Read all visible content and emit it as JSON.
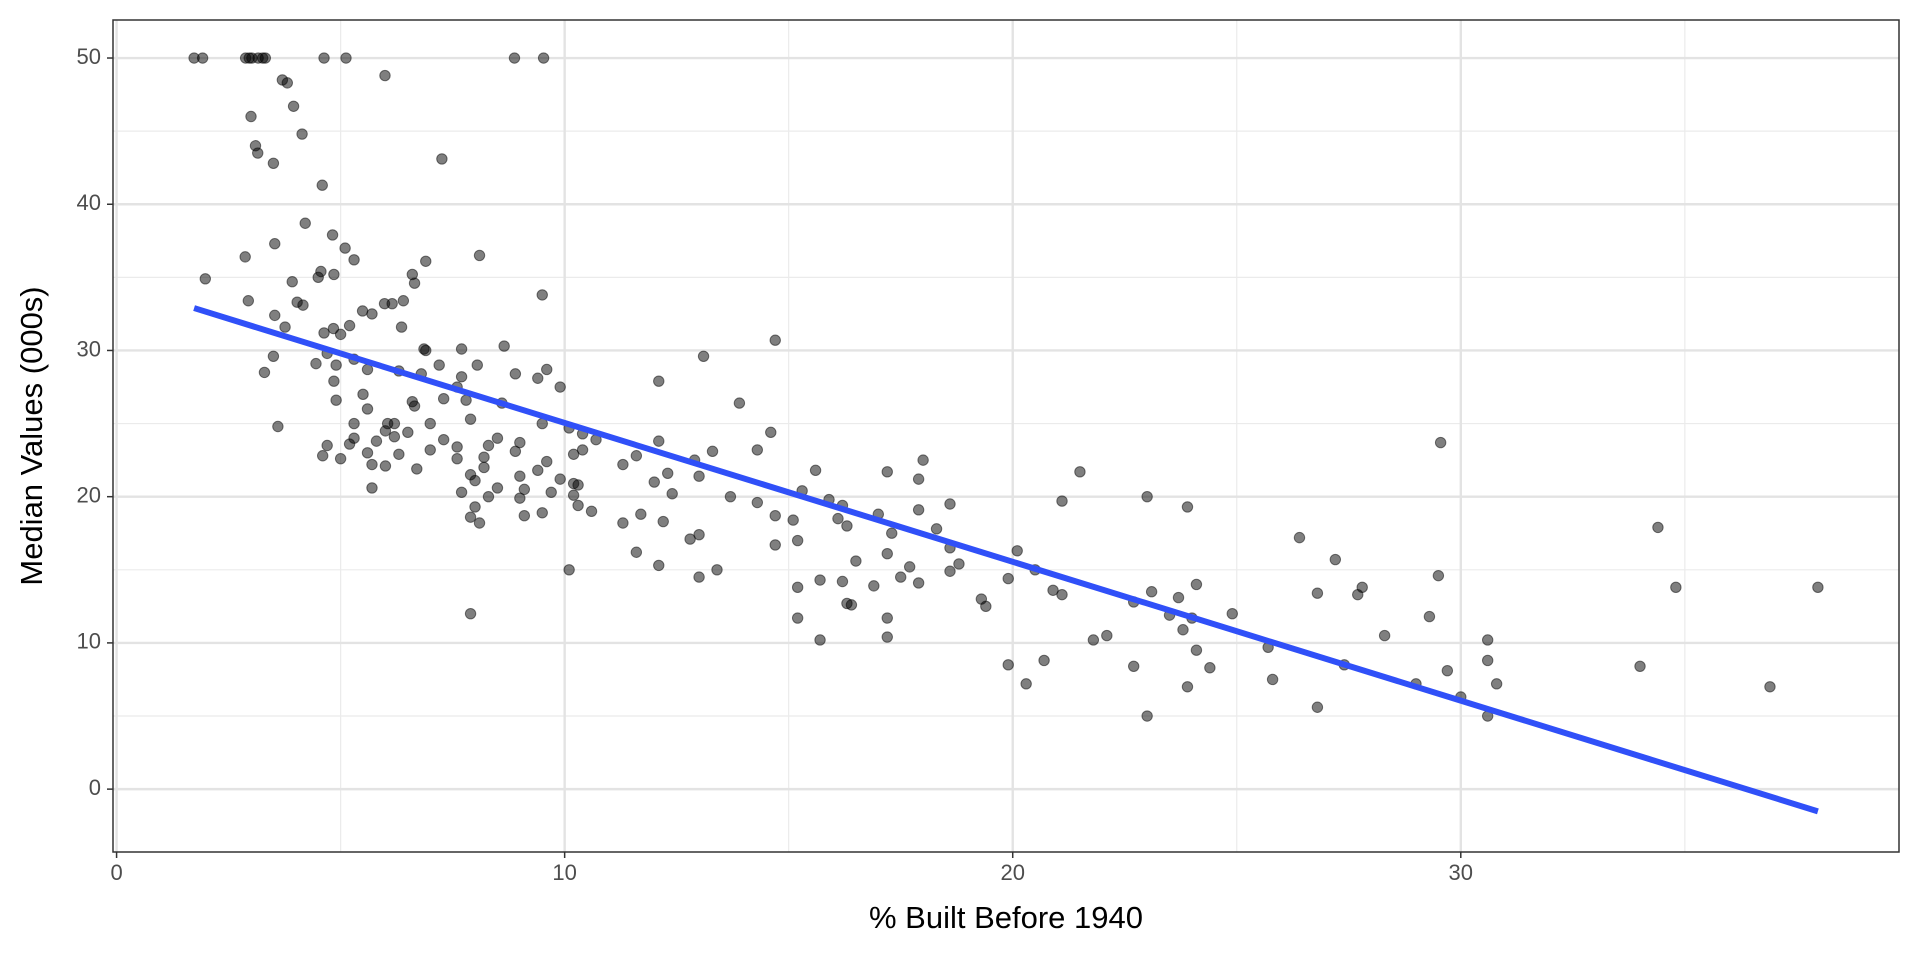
{
  "chart_data": {
    "type": "scatter",
    "x_label": "% Built Before 1940",
    "y_label": "Median Values (000s)",
    "x": [
      1.73,
      1.92,
      2.88,
      2.96,
      3.02,
      3.16,
      3.26,
      3.32,
      4.63,
      5.12,
      8.88,
      9.53,
      5.99,
      3.7,
      3.81,
      3.95,
      4.14,
      3.0,
      3.1,
      3.15,
      3.5,
      4.59,
      7.26,
      4.21,
      4.82,
      3.53,
      5.1,
      8.1,
      2.87,
      5.3,
      6.9,
      4.56,
      4.85,
      6.6,
      4.5,
      1.98,
      3.92,
      6.65,
      9.5,
      2.94,
      6.4,
      4.03,
      5.98,
      6.15,
      4.16,
      5.49,
      5.7,
      3.53,
      5.2,
      6.36,
      4.84,
      3.76,
      4.63,
      5.0,
      14.7,
      8.65,
      6.86,
      7.7,
      6.9,
      4.7,
      3.5,
      13.1,
      5.3,
      4.45,
      8.05,
      7.2,
      4.9,
      5.6,
      9.6,
      6.3,
      3.3,
      6.8,
      8.9,
      7.7,
      9.4,
      12.1,
      4.85,
      9.9,
      7.6,
      5.5,
      7.3,
      4.9,
      7.8,
      6.6,
      13.9,
      8.6,
      6.65,
      5.6,
      7.9,
      6.2,
      6.05,
      7.0,
      9.5,
      5.3,
      3.6,
      10.1,
      6.0,
      14.6,
      6.5,
      10.4,
      6.2,
      8.5,
      5.3,
      10.7,
      7.3,
      5.8,
      12.1,
      29.55,
      9.0,
      5.2,
      4.7,
      8.3,
      7.6,
      7.0,
      10.4,
      14.3,
      8.9,
      13.3,
      5.6,
      10.2,
      6.3,
      4.6,
      11.6,
      8.2,
      7.6,
      5.0,
      18.0,
      12.9,
      9.6,
      5.7,
      11.3,
      6.0,
      8.2,
      6.7,
      9.4,
      15.6,
      17.2,
      21.5,
      12.3,
      7.9,
      9.0,
      13.0,
      9.9,
      17.9,
      8.0,
      12.0,
      10.2,
      10.3,
      5.7,
      8.5,
      9.1,
      15.3,
      9.7,
      7.7,
      12.4,
      10.2,
      23.0,
      8.3,
      13.7,
      9.0,
      15.9,
      21.1,
      14.3,
      18.6,
      16.2,
      10.3,
      23.9,
      8.0,
      17.9,
      10.6,
      9.5,
      11.7,
      17.0,
      9.1,
      14.7,
      7.9,
      16.1,
      15.1,
      12.2,
      8.1,
      11.3,
      16.3,
      18.3,
      17.3,
      13.0,
      26.4,
      12.8,
      15.2,
      14.7,
      18.6,
      11.6,
      17.2,
      20.1,
      27.2,
      16.5,
      18.8,
      12.1,
      17.7,
      10.1,
      20.5,
      13.4,
      18.6,
      29.5,
      17.5,
      13.0,
      19.9,
      15.7,
      16.2,
      17.9,
      24.1,
      16.9,
      27.8,
      34.8,
      37.97,
      15.2,
      20.9,
      23.1,
      26.8,
      21.1,
      27.7,
      23.7,
      19.3,
      22.7,
      16.3,
      16.4,
      19.4,
      24.9,
      7.9,
      23.5,
      29.3,
      15.2,
      24.0,
      17.2,
      23.8,
      22.1,
      28.3,
      17.2,
      15.7,
      21.8,
      30.6,
      25.7,
      24.1,
      30.6,
      20.7,
      27.4,
      19.9,
      22.7,
      34.0,
      24.4,
      29.7,
      25.8,
      20.3,
      29.0,
      30.8,
      23.9,
      36.9,
      30.0,
      26.8,
      23.0,
      30.6,
      34.4
    ],
    "values": [
      50,
      50,
      50,
      50,
      50,
      50,
      50,
      50,
      50,
      50,
      50,
      50,
      48.8,
      48.5,
      48.3,
      46.7,
      44.8,
      46,
      44,
      43.5,
      42.8,
      41.3,
      43.1,
      38.7,
      37.9,
      37.3,
      37,
      36.5,
      36.4,
      36.2,
      36.1,
      35.4,
      35.2,
      35.2,
      35,
      34.9,
      34.7,
      34.6,
      33.8,
      33.4,
      33.4,
      33.3,
      33.2,
      33.2,
      33.1,
      32.7,
      32.5,
      32.4,
      31.7,
      31.6,
      31.5,
      31.6,
      31.2,
      31.1,
      30.7,
      30.3,
      30.1,
      30.1,
      30,
      29.8,
      29.6,
      29.6,
      29.4,
      29.1,
      29,
      29,
      29,
      28.7,
      28.7,
      28.6,
      28.5,
      28.4,
      28.4,
      28.2,
      28.1,
      27.9,
      27.9,
      27.5,
      27.5,
      27,
      26.7,
      26.6,
      26.6,
      26.5,
      26.4,
      26.4,
      26.2,
      26,
      25.3,
      25,
      25,
      25,
      25,
      25,
      24.8,
      24.7,
      24.5,
      24.4,
      24.4,
      24.3,
      24.1,
      24,
      24,
      23.9,
      23.9,
      23.8,
      23.8,
      23.7,
      23.7,
      23.6,
      23.5,
      23.5,
      23.4,
      23.2,
      23.2,
      23.2,
      23.1,
      23.1,
      23,
      22.9,
      22.9,
      22.8,
      22.8,
      22.7,
      22.6,
      22.6,
      22.5,
      22.5,
      22.4,
      22.2,
      22.2,
      22.1,
      22,
      21.9,
      21.8,
      21.8,
      21.7,
      21.7,
      21.6,
      21.5,
      21.4,
      21.4,
      21.2,
      21.2,
      21.1,
      21,
      20.9,
      20.8,
      20.6,
      20.6,
      20.5,
      20.4,
      20.3,
      20.3,
      20.2,
      20.1,
      20,
      20,
      20,
      19.9,
      19.8,
      19.7,
      19.6,
      19.5,
      19.4,
      19.4,
      19.3,
      19.3,
      19.1,
      19,
      18.9,
      18.8,
      18.8,
      18.7,
      18.7,
      18.6,
      18.5,
      18.4,
      18.3,
      18.2,
      18.2,
      18,
      17.8,
      17.5,
      17.4,
      17.2,
      17.1,
      17,
      16.7,
      16.5,
      16.2,
      16.1,
      16.3,
      15.7,
      15.6,
      15.4,
      15.3,
      15.2,
      15,
      15,
      15,
      14.9,
      14.6,
      14.5,
      14.5,
      14.4,
      14.3,
      14.2,
      14.1,
      14,
      13.9,
      13.8,
      13.8,
      13.8,
      13.8,
      13.6,
      13.5,
      13.4,
      13.3,
      13.3,
      13.1,
      13,
      12.8,
      12.7,
      12.6,
      12.5,
      12,
      12,
      11.9,
      11.8,
      11.7,
      11.7,
      11.7,
      10.9,
      10.5,
      10.5,
      10.4,
      10.2,
      10.2,
      10.2,
      9.7,
      9.5,
      8.8,
      8.8,
      8.5,
      8.5,
      8.4,
      8.4,
      8.3,
      8.1,
      7.5,
      7.2,
      7.2,
      7.2,
      7,
      7,
      6.3,
      5.6,
      5,
      5,
      17.9
    ],
    "color": "#000000",
    "opacity": 0.5,
    "fit_line": {
      "x": [
        1.73,
        37.97
      ],
      "values": [
        32.9,
        -1.52
      ],
      "color": "#3050f8"
    },
    "xlim": [
      -0.08,
      39.78
    ],
    "ylim": [
      -4.3,
      52.6
    ],
    "xticks": [
      0,
      10,
      20,
      30
    ],
    "yticks": [
      0,
      10,
      20,
      30,
      40,
      50
    ],
    "x_minor_grid": [
      5,
      15,
      25,
      35
    ],
    "y_minor_grid": [
      5,
      15,
      25,
      35,
      45
    ],
    "grid": true
  }
}
